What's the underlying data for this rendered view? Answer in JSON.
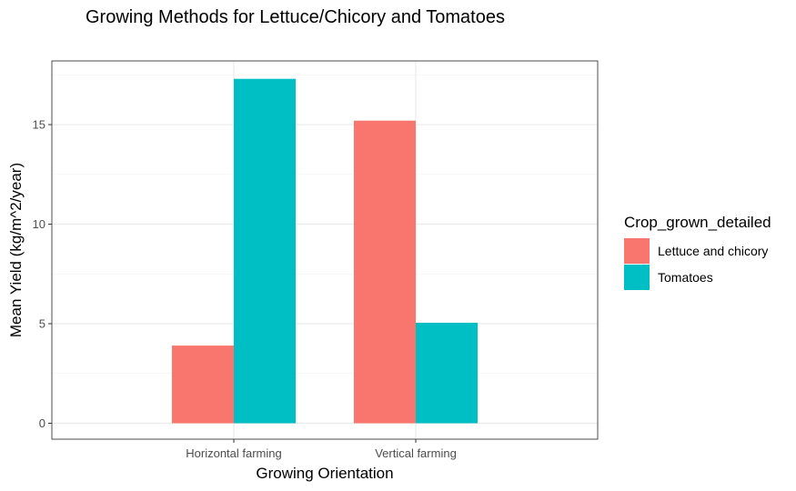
{
  "chart_data": {
    "type": "bar",
    "title": "Growing Methods for Lettuce/Chicory and Tomatoes",
    "xlabel": "Growing Orientation",
    "ylabel": "Mean Yield (kg/m^2/year)",
    "categories": [
      "Horizontal farming",
      "Vertical farming"
    ],
    "series": [
      {
        "name": "Lettuce and chicory",
        "color": "#F8766D",
        "values": [
          3.9,
          15.2
        ]
      },
      {
        "name": "Tomatoes",
        "color": "#00BFC4",
        "values": [
          17.3,
          5.05
        ]
      }
    ],
    "yticks": [
      0,
      5,
      10,
      15
    ],
    "ylim": [
      -0.8,
      18.2
    ],
    "grid": true,
    "legend": {
      "title": "Crop_grown_detailed",
      "position": "right"
    }
  }
}
